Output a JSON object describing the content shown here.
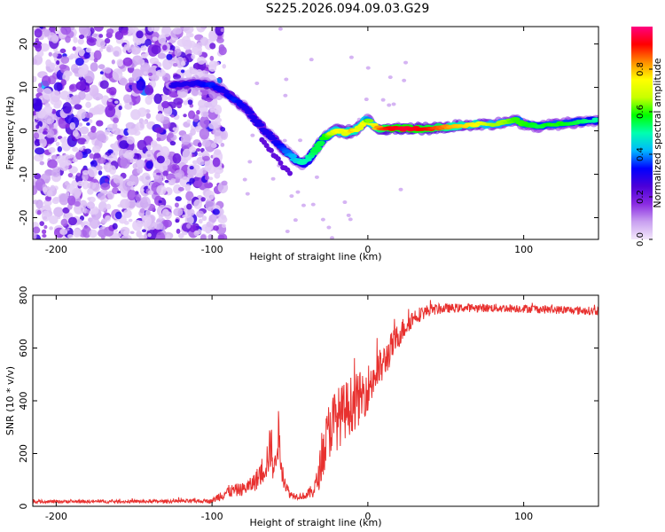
{
  "title": "S225.2026.094.09.03.G29",
  "colors": {
    "snr_line": "#e8312f",
    "axis": "#000000"
  },
  "chart_data": [
    {
      "type": "heatmap",
      "name": "spectrogram",
      "xlabel": "Height of straight line (km)",
      "ylabel": "Frequency (Hz)",
      "xlim": [
        -215,
        148
      ],
      "ylim": [
        -25,
        24
      ],
      "xticks": [
        -200,
        -100,
        0,
        100
      ],
      "yticks": [
        -20,
        -10,
        0,
        10,
        20
      ],
      "xticklabels": [
        "-200",
        "-100",
        "0",
        "100"
      ],
      "yticklabels": [
        "-20",
        "-10",
        "0",
        "10",
        "20"
      ],
      "noise_region_x": [
        -215,
        -100
      ],
      "ridge": {
        "x": [
          -125,
          -110,
          -100,
          -92,
          -85,
          -78,
          -72,
          -66,
          -60,
          -55,
          -50,
          -45,
          -42,
          -38,
          -34,
          -30,
          -26,
          -22,
          -18,
          -14,
          -10,
          -6,
          -2,
          0,
          4,
          8,
          15,
          25,
          40,
          55,
          70,
          80,
          88,
          95,
          100,
          110,
          120,
          135,
          148
        ],
        "freq": [
          10.5,
          11,
          10.5,
          9,
          7,
          5,
          2.5,
          0,
          -2,
          -4,
          -5.5,
          -7,
          -7.5,
          -6.5,
          -4.5,
          -2.5,
          -1,
          0,
          0,
          -0.5,
          0,
          0.5,
          2,
          2.5,
          1,
          0.5,
          0.5,
          0.5,
          0.5,
          1,
          1.5,
          1.5,
          2,
          2.5,
          1.5,
          1,
          1.5,
          2,
          2.5
        ],
        "amplitude": [
          0.3,
          0.3,
          0.35,
          0.3,
          0.35,
          0.3,
          0.3,
          0.3,
          0.3,
          0.35,
          0.4,
          0.45,
          0.5,
          0.5,
          0.55,
          0.55,
          0.6,
          0.7,
          0.75,
          0.7,
          0.8,
          0.7,
          0.75,
          0.6,
          0.75,
          0.85,
          0.92,
          0.95,
          0.9,
          0.8,
          0.75,
          0.65,
          0.65,
          0.6,
          0.6,
          0.55,
          0.6,
          0.55,
          0.5
        ]
      },
      "colorbar": {
        "label": "Normalized spectral amplitude",
        "range": [
          0,
          1
        ],
        "ticks": [
          0.0,
          0.2,
          0.4,
          0.6,
          0.8
        ],
        "ticklabels": [
          "0.0",
          "0.2",
          "0.4",
          "0.6",
          "0.8"
        ],
        "stops": [
          "#f3e8fb",
          "#c9a0f0",
          "#8a2be2",
          "#4b00d8",
          "#0000ff",
          "#00b7ff",
          "#00ffb0",
          "#00ff00",
          "#c8ff00",
          "#ffff00",
          "#ff8c00",
          "#ff0000",
          "#ff0080"
        ]
      }
    },
    {
      "type": "line",
      "name": "snr",
      "xlabel": "Height of straight line (km)",
      "ylabel": "SNR (10 * v/v)",
      "xlim": [
        -215,
        148
      ],
      "ylim": [
        0,
        800
      ],
      "xticks": [
        -200,
        -100,
        0,
        100
      ],
      "yticks": [
        0,
        200,
        400,
        600,
        800
      ],
      "xticklabels": [
        "-200",
        "-100",
        "0",
        "100"
      ],
      "yticklabels": [
        "0",
        "200",
        "400",
        "600",
        "800"
      ],
      "envelope": {
        "x": [
          -215,
          -150,
          -100,
          -95,
          -90,
          -85,
          -80,
          -75,
          -70,
          -65,
          -62,
          -60,
          -58,
          -56,
          -54,
          -52,
          -50,
          -45,
          -40,
          -35,
          -32,
          -30,
          -28,
          -26,
          -24,
          -20,
          -15,
          -10,
          -5,
          0,
          5,
          10,
          15,
          20,
          25,
          30,
          40,
          50,
          60,
          80,
          100,
          120,
          148
        ],
        "y": [
          18,
          18,
          20,
          40,
          55,
          60,
          65,
          80,
          110,
          170,
          230,
          120,
          300,
          180,
          110,
          70,
          45,
          38,
          40,
          60,
          100,
          170,
          220,
          260,
          310,
          330,
          360,
          390,
          410,
          450,
          500,
          540,
          600,
          650,
          690,
          720,
          745,
          750,
          752,
          752,
          750,
          745,
          740
        ],
        "noise": [
          6,
          6,
          8,
          20,
          25,
          25,
          25,
          30,
          45,
          70,
          90,
          60,
          120,
          70,
          40,
          25,
          15,
          12,
          14,
          30,
          50,
          80,
          100,
          110,
          120,
          120,
          110,
          110,
          100,
          90,
          80,
          70,
          60,
          50,
          40,
          32,
          22,
          18,
          16,
          16,
          16,
          16,
          16
        ]
      }
    }
  ]
}
